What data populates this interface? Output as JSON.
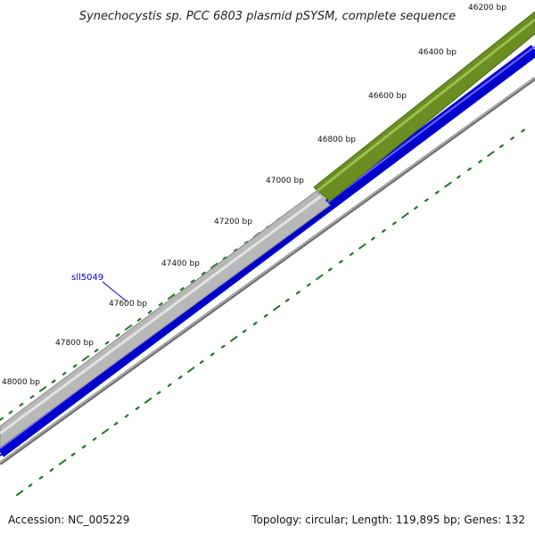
{
  "title": "Synechocystis sp. PCC 6803 plasmid pSYSM, complete sequence",
  "gene_label": "sll5049",
  "tick_labels": [
    "46200 bp",
    "46400 bp",
    "46600 bp",
    "46800 bp",
    "47000 bp",
    "47200 bp",
    "47400 bp",
    "47600 bp",
    "47800 bp",
    "48000 bp"
  ],
  "footer": {
    "accession": "Accession: NC_005229",
    "summary": "Topology: circular; Length: 119,895 bp; Genes: 132"
  },
  "colors": {
    "gene_forward_green": "#6b8e23",
    "gene_forward_grey": "#bdbdbd",
    "gene_reverse_blue": "#0000ee",
    "backbone_grey": "#808080",
    "tick_green": "#1f7a1f",
    "label_blue": "#0000cc"
  }
}
